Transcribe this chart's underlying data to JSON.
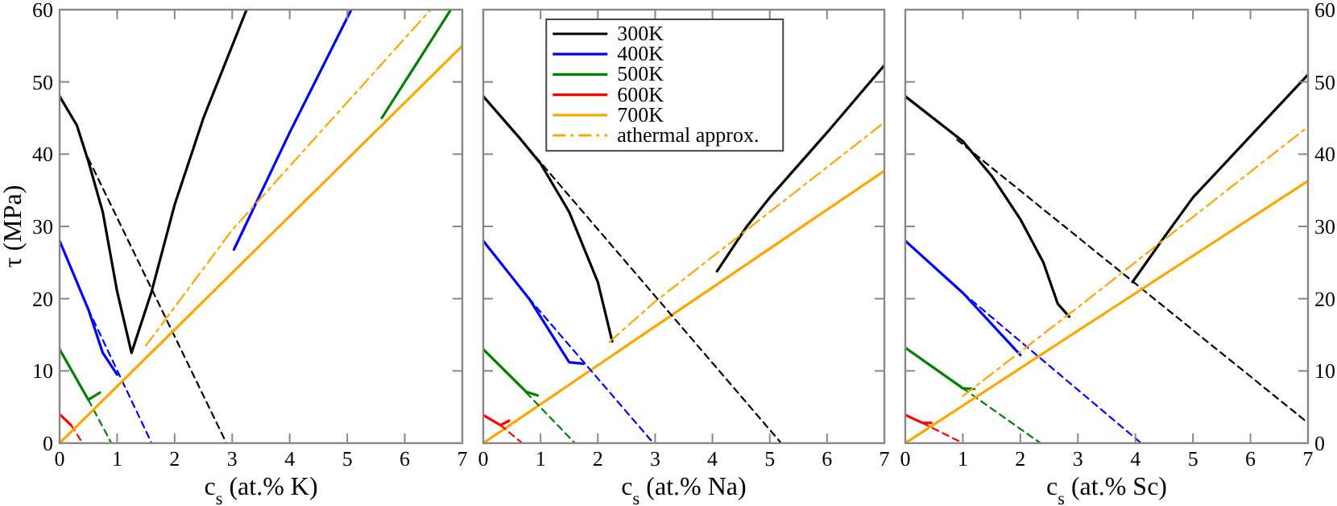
{
  "chart_data": [
    {
      "type": "line",
      "xlabel": "c$_{s}$ (at.% K)",
      "ylabel": "τ (MPa)",
      "xlim": [
        0,
        7
      ],
      "ylim": [
        0,
        60
      ],
      "xticks": [
        0,
        1,
        2,
        3,
        4,
        5,
        6,
        7
      ],
      "yticks": [
        0,
        10,
        20,
        30,
        40,
        50,
        60
      ],
      "grid": false,
      "legend": false,
      "series": [
        {
          "color": "#000000",
          "line_style": "solid",
          "x": [
            0,
            0.3,
            0.5,
            0.75,
            1.0,
            1.25,
            1.6,
            2,
            2.5,
            3.25
          ],
          "values": [
            48,
            44,
            39,
            32,
            21,
            12.5,
            21,
            33,
            45,
            60
          ]
        },
        {
          "color": "#000000",
          "line_style": "dashed",
          "x": [
            0.5,
            2.9
          ],
          "values": [
            39.4,
            0
          ]
        },
        {
          "color": "#0000ff",
          "line_style": "solid",
          "x": [
            0,
            0.5,
            0.75,
            1.0
          ],
          "values": [
            28,
            18.5,
            12.5,
            9.5
          ]
        },
        {
          "color": "#0000ff",
          "line_style": "solid",
          "x": [
            3.03,
            4,
            5.07
          ],
          "values": [
            26.8,
            43,
            60
          ]
        },
        {
          "color": "#0000ff",
          "line_style": "dashed",
          "x": [
            0.5,
            1.6
          ],
          "values": [
            18.5,
            0
          ]
        },
        {
          "color": "#008000",
          "line_style": "solid",
          "x": [
            0,
            0.5,
            0.7
          ],
          "values": [
            13,
            6,
            7
          ]
        },
        {
          "color": "#008000",
          "line_style": "solid",
          "x": [
            5.6,
            6.8
          ],
          "values": [
            45,
            60
          ]
        },
        {
          "color": "#008000",
          "line_style": "dashed",
          "x": [
            0.5,
            0.9
          ],
          "values": [
            6,
            0
          ]
        },
        {
          "color": "#ff0000",
          "line_style": "solid",
          "x": [
            0,
            0.2
          ],
          "values": [
            4,
            2.5
          ]
        },
        {
          "color": "#ff0000",
          "line_style": "dashed",
          "x": [
            0.2,
            0.4
          ],
          "values": [
            2.5,
            0
          ]
        },
        {
          "color": "#ffa500",
          "line_style": "solid",
          "x": [
            0,
            7
          ],
          "values": [
            0,
            55
          ]
        },
        {
          "color": "#ffa500",
          "line_style": "dashdot",
          "x": [
            1.5,
            3,
            6.45
          ],
          "values": [
            13.5,
            29.5,
            60
          ]
        }
      ]
    },
    {
      "type": "line",
      "xlabel": "c$_{s}$ (at.% Na)",
      "xlim": [
        0,
        7
      ],
      "ylim": [
        0,
        60
      ],
      "xticks": [
        0,
        1,
        2,
        3,
        4,
        5,
        6,
        7
      ],
      "yticks": [
        0,
        10,
        20,
        30,
        40,
        50,
        60
      ],
      "tick_labels": "x",
      "grid": false,
      "legend": "top",
      "series": [
        {
          "name": "300K",
          "color": "#000000",
          "line_style": "solid",
          "x": [
            0,
            0.66,
            1,
            1.5,
            2,
            2.25
          ],
          "values": [
            48,
            42,
            38.7,
            32,
            22.3,
            14.1
          ]
        },
        {
          "color": "#000000",
          "line_style": "solid",
          "x": [
            4.08,
            4.6,
            5,
            6,
            7
          ],
          "values": [
            23.8,
            30,
            34,
            43,
            52.3
          ]
        },
        {
          "name": "400K",
          "color": "#0000ff",
          "line_style": "solid",
          "x": [
            0,
            0.8,
            1.5,
            1.75
          ],
          "values": [
            28,
            20,
            11.2,
            11
          ]
        },
        {
          "name": "500K",
          "color": "#008000",
          "line_style": "solid",
          "x": [
            0,
            0.75,
            0.95
          ],
          "values": [
            13,
            7.1,
            6.6
          ]
        },
        {
          "name": "600K",
          "color": "#ff0000",
          "line_style": "solid",
          "x": [
            0,
            0.3,
            0.45
          ],
          "values": [
            3.9,
            2.5,
            3.1
          ]
        },
        {
          "name": "700K",
          "color": "#ffa500",
          "line_style": "solid",
          "x": [
            0,
            7
          ],
          "values": [
            0,
            37.7
          ]
        },
        {
          "name": "athermal approx.",
          "color": "#ffa500",
          "line_style": "dashdot",
          "x": [
            2.2,
            3,
            7
          ],
          "values": [
            14,
            19.6,
            44.4
          ]
        },
        {
          "color": "#000000",
          "line_style": "dashed",
          "x": [
            0.66,
            5.2
          ],
          "values": [
            42,
            0
          ]
        },
        {
          "color": "#0000ff",
          "line_style": "dashed",
          "x": [
            0.8,
            2.97
          ],
          "values": [
            20,
            0
          ]
        },
        {
          "color": "#008000",
          "line_style": "dashed",
          "x": [
            0.75,
            1.6
          ],
          "values": [
            7,
            0
          ]
        },
        {
          "color": "#ff0000",
          "line_style": "dashed",
          "x": [
            0.3,
            0.68
          ],
          "values": [
            2.5,
            0
          ]
        }
      ]
    },
    {
      "type": "line",
      "xlabel": "c$_{s}$ (at.% Sc)",
      "xlim": [
        0,
        7
      ],
      "ylim": [
        0,
        60
      ],
      "xticks": [
        0,
        1,
        2,
        3,
        4,
        5,
        6,
        7
      ],
      "yticks": [
        0,
        10,
        20,
        30,
        40,
        50,
        60
      ],
      "grid": false,
      "legend": false,
      "series": [
        {
          "color": "#000000",
          "line_style": "solid",
          "x": [
            0,
            1,
            1.5,
            2,
            2.4,
            2.65,
            2.85
          ],
          "values": [
            48,
            41.8,
            37,
            31,
            25,
            19.3,
            17.5
          ]
        },
        {
          "color": "#000000",
          "line_style": "solid",
          "x": [
            3.95,
            4.5,
            5,
            6,
            7
          ],
          "values": [
            22.3,
            28.5,
            34,
            42.5,
            51
          ]
        },
        {
          "color": "#000000",
          "line_style": "dashed",
          "x": [
            0.9,
            7
          ],
          "values": [
            42,
            2.8
          ]
        },
        {
          "color": "#0000ff",
          "line_style": "solid",
          "x": [
            0,
            1,
            2
          ],
          "values": [
            28,
            20.8,
            12.2
          ]
        },
        {
          "color": "#0000ff",
          "line_style": "dashed",
          "x": [
            1,
            4.1
          ],
          "values": [
            20.8,
            0
          ]
        },
        {
          "color": "#008000",
          "line_style": "solid",
          "x": [
            0,
            1,
            1.2
          ],
          "values": [
            13.2,
            7.6,
            7.5
          ]
        },
        {
          "color": "#008000",
          "line_style": "dashed",
          "x": [
            1,
            2.35
          ],
          "values": [
            7.6,
            0
          ]
        },
        {
          "color": "#ff0000",
          "line_style": "solid",
          "x": [
            0,
            0.3,
            0.45
          ],
          "values": [
            3.9,
            2.8,
            2.8
          ]
        },
        {
          "color": "#ff0000",
          "line_style": "dashed",
          "x": [
            0.3,
            1
          ],
          "values": [
            2.8,
            0
          ]
        },
        {
          "color": "#ffa500",
          "line_style": "solid",
          "x": [
            0,
            7
          ],
          "values": [
            0,
            36.3
          ]
        },
        {
          "color": "#ffa500",
          "line_style": "dashdot",
          "x": [
            1,
            3,
            7
          ],
          "values": [
            6.5,
            18.8,
            43.8
          ]
        }
      ]
    }
  ]
}
